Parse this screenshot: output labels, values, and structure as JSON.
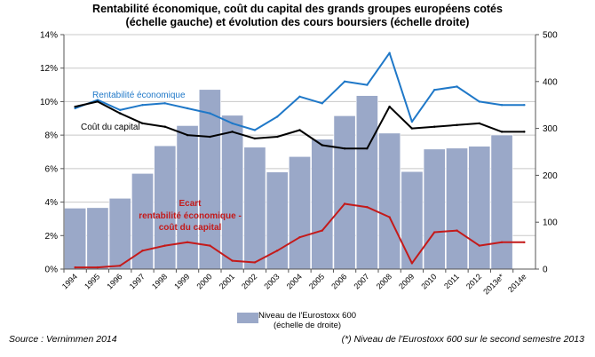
{
  "chart_data": {
    "type": "bar+line",
    "title": "Rentabilité économique, coût du capital des grands groupes européens cotés",
    "subtitle": "(échelle gauche) et évolution des cours boursiers (échelle droite)",
    "categories": [
      "1994",
      "1995",
      "1996",
      "1997",
      "1998",
      "1999",
      "2000",
      "2001",
      "2002",
      "2003",
      "2004",
      "2005",
      "2006",
      "2007",
      "2008",
      "2009",
      "2010",
      "2011",
      "2012",
      "2013e*",
      "2014e"
    ],
    "y_left": {
      "min": 0,
      "max": 14,
      "step": 2,
      "unit": "%",
      "ticks": [
        "0%",
        "2%",
        "4%",
        "6%",
        "8%",
        "10%",
        "12%",
        "14%"
      ]
    },
    "y_right": {
      "min": 0,
      "max": 500,
      "step": 100,
      "ticks": [
        "0",
        "100",
        "200",
        "300",
        "400",
        "500"
      ]
    },
    "grid": true,
    "bars": {
      "name": "Niveau de l'Eurostoxx 600 (échelle de droite)",
      "legend_lines": [
        "Niveau de l'Eurostoxx 600",
        "(échelle de droite)"
      ],
      "axis": "right",
      "color": "#9aa8c8",
      "values": [
        130,
        131,
        151,
        204,
        263,
        306,
        383,
        328,
        260,
        207,
        240,
        277,
        327,
        370,
        290,
        208,
        256,
        258,
        262,
        286,
        null
      ]
    },
    "series": [
      {
        "name": "Rentabilité économique",
        "axis": "left",
        "color": "#1f78c8",
        "values": [
          9.6,
          10.1,
          9.5,
          9.8,
          9.9,
          9.6,
          9.3,
          8.7,
          8.3,
          9.1,
          10.3,
          9.9,
          11.2,
          11.0,
          12.9,
          8.8,
          10.7,
          10.9,
          10.0,
          9.8,
          9.8
        ]
      },
      {
        "name": "Coût du capital",
        "axis": "left",
        "color": "#000000",
        "values": [
          9.7,
          10.0,
          9.3,
          8.7,
          8.5,
          8.0,
          7.9,
          8.2,
          7.8,
          7.9,
          8.3,
          7.4,
          7.2,
          7.2,
          9.7,
          8.4,
          8.5,
          8.6,
          8.7,
          8.2,
          8.2
        ]
      },
      {
        "name": "Ecart rentabilité économique - coût du capital",
        "axis": "left",
        "color": "#c41a1a",
        "values": [
          0.1,
          0.1,
          0.2,
          1.1,
          1.4,
          1.6,
          1.4,
          0.5,
          0.4,
          1.1,
          1.9,
          2.3,
          3.9,
          3.7,
          3.1,
          0.35,
          2.2,
          2.3,
          1.4,
          1.6,
          1.6
        ]
      }
    ],
    "annotations": [
      {
        "text": "Rentabilité économique",
        "color": "#1f78c8"
      },
      {
        "text": "Coût du capital",
        "color": "#000000"
      },
      {
        "text_lines": [
          "Ecart",
          "rentabilité économique  -",
          "coût du capital"
        ],
        "color": "#c41a1a"
      }
    ]
  },
  "footer": {
    "source": "Source : Vernimmen 2014",
    "footnote": "(*) Niveau de l'Eurostoxx 600 sur le second semestre 2013"
  }
}
